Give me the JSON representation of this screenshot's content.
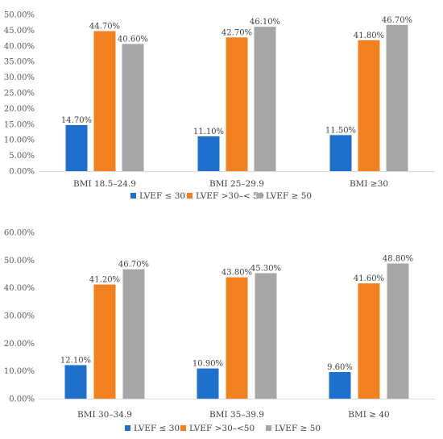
{
  "chart_data": [
    {
      "type": "bar",
      "categories": [
        "BMI 18.5–24.9",
        "BMI 25–29.9",
        "BMI ≥30"
      ],
      "series": [
        {
          "name": "LVEF ≤ 30",
          "color": "#1F6FCC",
          "values": [
            14.7,
            11.1,
            11.5
          ],
          "labels": [
            "14.70%",
            "11.10%",
            "11.50%"
          ]
        },
        {
          "name": "LVEF >30–< 50",
          "color": "#F08020",
          "values": [
            44.7,
            42.7,
            41.8
          ],
          "labels": [
            "44.70%",
            "42.70%",
            "41.80%"
          ]
        },
        {
          "name": "LVEF ≥ 50",
          "color": "#A6A6A6",
          "values": [
            40.6,
            46.1,
            46.7
          ],
          "labels": [
            "40.60%",
            "46.10%",
            "46.70%"
          ]
        }
      ],
      "ylim": [
        0,
        50
      ],
      "yticks": [
        0,
        5,
        10,
        15,
        20,
        25,
        30,
        35,
        40,
        45,
        50
      ],
      "ytick_labels": [
        "0.00%",
        "5.00%",
        "10.00%",
        "15.00%",
        "20.00%",
        "25.00%",
        "30.00%",
        "35.00%",
        "40.00%",
        "45.00%",
        "50.00%"
      ],
      "grid": false,
      "legend": "bottom"
    },
    {
      "type": "bar",
      "categories": [
        "BMI 30–34.9",
        "BMI 35–39.9",
        "BMI ≥ 40"
      ],
      "series": [
        {
          "name": "LVEF ≤ 30",
          "color": "#1F6FCC",
          "values": [
            12.1,
            10.9,
            9.6
          ],
          "labels": [
            "12.10%",
            "10.90%",
            "9.60%"
          ]
        },
        {
          "name": "LVEF >30–<50",
          "color": "#F08020",
          "values": [
            41.2,
            43.8,
            41.6
          ],
          "labels": [
            "41.20%",
            "43.80%",
            "41.60%"
          ]
        },
        {
          "name": "LVEF ≥ 50",
          "color": "#A6A6A6",
          "values": [
            46.7,
            45.3,
            48.8
          ],
          "labels": [
            "46.70%",
            "45.30%",
            "48.80%"
          ]
        }
      ],
      "ylim": [
        0,
        60
      ],
      "yticks": [
        0,
        10,
        20,
        30,
        40,
        50,
        60
      ],
      "ytick_labels": [
        "0.00%",
        "10.00%",
        "20.00%",
        "30.00%",
        "40.00%",
        "50.00%",
        "60.00%"
      ],
      "grid": false,
      "legend": "bottom"
    }
  ]
}
